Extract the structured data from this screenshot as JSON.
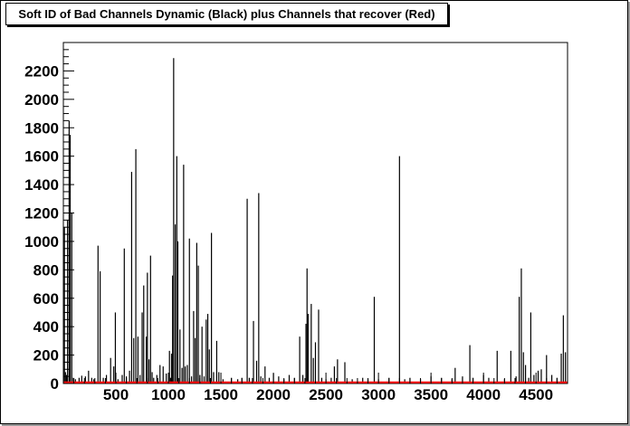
{
  "chart_data": {
    "type": "histogram",
    "title": "Soft ID of Bad Channels Dynamic (Black) plus Channels that recover (Red)",
    "xlabel": "",
    "ylabel": "",
    "xlim": [
      0,
      4800
    ],
    "ylim": [
      0,
      2400
    ],
    "x_major_ticks": [
      500,
      1000,
      1500,
      2000,
      2500,
      3000,
      3500,
      4000,
      4500
    ],
    "y_major_ticks": [
      0,
      200,
      400,
      600,
      800,
      1000,
      1200,
      1400,
      1600,
      1800,
      2000,
      2200
    ],
    "grid": false,
    "series": [
      {
        "color": "#000000",
        "points": [
          [
            10,
            1100
          ],
          [
            20,
            80
          ],
          [
            30,
            60
          ],
          [
            40,
            1150
          ],
          [
            55,
            1850
          ],
          [
            65,
            1750
          ],
          [
            80,
            1200
          ],
          [
            95,
            40
          ],
          [
            115,
            30
          ],
          [
            150,
            40
          ],
          [
            175,
            55
          ],
          [
            210,
            50
          ],
          [
            240,
            90
          ],
          [
            270,
            40
          ],
          [
            290,
            30
          ],
          [
            330,
            970
          ],
          [
            350,
            790
          ],
          [
            380,
            40
          ],
          [
            410,
            60
          ],
          [
            450,
            180
          ],
          [
            480,
            120
          ],
          [
            495,
            500
          ],
          [
            520,
            30
          ],
          [
            560,
            60
          ],
          [
            580,
            950
          ],
          [
            600,
            50
          ],
          [
            630,
            90
          ],
          [
            650,
            1490
          ],
          [
            670,
            320
          ],
          [
            690,
            1650
          ],
          [
            710,
            330
          ],
          [
            730,
            60
          ],
          [
            750,
            500
          ],
          [
            765,
            690
          ],
          [
            790,
            330
          ],
          [
            800,
            780
          ],
          [
            815,
            170
          ],
          [
            830,
            900
          ],
          [
            845,
            80
          ],
          [
            860,
            40
          ],
          [
            890,
            60
          ],
          [
            920,
            130
          ],
          [
            950,
            120
          ],
          [
            980,
            70
          ],
          [
            1010,
            230
          ],
          [
            1020,
            40
          ],
          [
            1030,
            210
          ],
          [
            1040,
            760
          ],
          [
            1050,
            2290
          ],
          [
            1065,
            1120
          ],
          [
            1080,
            1600
          ],
          [
            1090,
            1000
          ],
          [
            1110,
            380
          ],
          [
            1130,
            110
          ],
          [
            1145,
            1540
          ],
          [
            1160,
            120
          ],
          [
            1180,
            130
          ],
          [
            1200,
            1020
          ],
          [
            1220,
            50
          ],
          [
            1240,
            510
          ],
          [
            1255,
            320
          ],
          [
            1270,
            990
          ],
          [
            1285,
            830
          ],
          [
            1300,
            60
          ],
          [
            1320,
            400
          ],
          [
            1340,
            50
          ],
          [
            1360,
            450
          ],
          [
            1375,
            490
          ],
          [
            1390,
            240
          ],
          [
            1410,
            1060
          ],
          [
            1430,
            80
          ],
          [
            1460,
            300
          ],
          [
            1480,
            80
          ],
          [
            1520,
            30
          ],
          [
            1600,
            40
          ],
          [
            1660,
            30
          ],
          [
            1700,
            40
          ],
          [
            1750,
            1300
          ],
          [
            1770,
            40
          ],
          [
            1810,
            440
          ],
          [
            1840,
            160
          ],
          [
            1860,
            1340
          ],
          [
            1880,
            50
          ],
          [
            1920,
            120
          ],
          [
            1960,
            40
          ],
          [
            2000,
            70
          ],
          [
            2050,
            50
          ],
          [
            2100,
            30
          ],
          [
            2150,
            60
          ],
          [
            2200,
            40
          ],
          [
            2250,
            330
          ],
          [
            2280,
            60
          ],
          [
            2310,
            420
          ],
          [
            2320,
            810
          ],
          [
            2330,
            490
          ],
          [
            2360,
            560
          ],
          [
            2380,
            180
          ],
          [
            2400,
            290
          ],
          [
            2430,
            520
          ],
          [
            2460,
            40
          ],
          [
            2500,
            30
          ],
          [
            2550,
            40
          ],
          [
            2580,
            120
          ],
          [
            2610,
            170
          ],
          [
            2680,
            150
          ],
          [
            2750,
            30
          ],
          [
            2850,
            40
          ],
          [
            2900,
            30
          ],
          [
            2960,
            610
          ],
          [
            3000,
            30
          ],
          [
            3100,
            40
          ],
          [
            3200,
            1600
          ],
          [
            3250,
            30
          ],
          [
            3300,
            40
          ],
          [
            3400,
            30
          ],
          [
            3500,
            50
          ],
          [
            3600,
            40
          ],
          [
            3700,
            30
          ],
          [
            3730,
            110
          ],
          [
            3800,
            50
          ],
          [
            3870,
            270
          ],
          [
            3900,
            40
          ],
          [
            4000,
            60
          ],
          [
            4050,
            40
          ],
          [
            4130,
            230
          ],
          [
            4200,
            30
          ],
          [
            4260,
            230
          ],
          [
            4310,
            50
          ],
          [
            4340,
            610
          ],
          [
            4360,
            810
          ],
          [
            4380,
            220
          ],
          [
            4400,
            130
          ],
          [
            4430,
            40
          ],
          [
            4450,
            500
          ],
          [
            4480,
            60
          ],
          [
            4520,
            90
          ],
          [
            4550,
            100
          ],
          [
            4600,
            200
          ],
          [
            4650,
            60
          ],
          [
            4700,
            40
          ],
          [
            4740,
            210
          ],
          [
            4760,
            480
          ],
          [
            4780,
            220
          ]
        ]
      },
      {
        "color": "#ff0000",
        "points": [
          [
            0,
            5
          ],
          [
            500,
            5
          ],
          [
            1000,
            5
          ],
          [
            1500,
            5
          ],
          [
            2000,
            5
          ],
          [
            2500,
            5
          ],
          [
            3000,
            5
          ],
          [
            3500,
            5
          ],
          [
            4000,
            5
          ],
          [
            4500,
            5
          ],
          [
            4800,
            5
          ]
        ]
      }
    ]
  }
}
